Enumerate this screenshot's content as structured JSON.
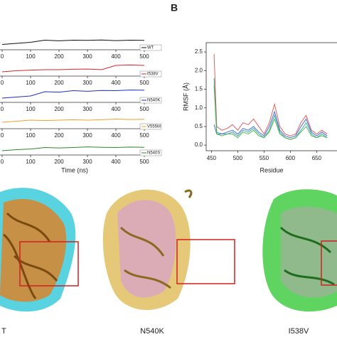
{
  "panel_label": "B",
  "chart_data": [
    {
      "type": "strips",
      "x_label": "Time (ns)",
      "x": [
        0,
        50,
        100,
        150,
        200,
        250,
        300,
        350,
        400,
        450,
        500
      ],
      "xlim": [
        0,
        510
      ],
      "xticks": [
        0,
        100,
        200,
        300,
        400,
        500
      ],
      "ylim": [
        0,
        1
      ],
      "series": [
        {
          "name": "WT",
          "color": "#111111",
          "values": [
            0.25,
            0.3,
            0.35,
            0.45,
            0.42,
            0.45,
            0.44,
            0.46,
            0.43,
            0.45,
            0.44
          ]
        },
        {
          "name": "I538V",
          "color": "#d62728",
          "values": [
            0.2,
            0.25,
            0.28,
            0.3,
            0.3,
            0.32,
            0.33,
            0.3,
            0.5,
            0.52,
            0.5
          ]
        },
        {
          "name": "N540K",
          "color": "#1f2fbf",
          "values": [
            0.2,
            0.25,
            0.3,
            0.5,
            0.48,
            0.55,
            0.52,
            0.56,
            0.55,
            0.58,
            0.57
          ]
        },
        {
          "name": "V555M",
          "color": "#f0a030",
          "values": [
            0.3,
            0.35,
            0.4,
            0.38,
            0.4,
            0.42,
            0.4,
            0.42,
            0.45,
            0.43,
            0.44
          ]
        },
        {
          "name": "N540S",
          "color": "#2a8a2a",
          "values": [
            0.2,
            0.25,
            0.28,
            0.35,
            0.33,
            0.35,
            0.38,
            0.36,
            0.35,
            0.37,
            0.36
          ]
        }
      ]
    },
    {
      "type": "line",
      "x_label": "Residue",
      "y_label": "RMSF (Å)",
      "x": [
        455,
        460,
        470,
        480,
        490,
        500,
        510,
        520,
        530,
        540,
        550,
        560,
        570,
        580,
        590,
        600,
        610,
        620,
        630,
        640,
        650,
        660,
        670
      ],
      "xlim": [
        440,
        690
      ],
      "xticks": [
        450,
        500,
        550,
        600,
        650
      ],
      "ylim": [
        -0.15,
        2.75
      ],
      "yticks": [
        {
          "value": 0,
          "label": "0.0"
        },
        {
          "value": 0.5,
          "label": "0.5"
        },
        {
          "value": 1,
          "label": "1.0"
        },
        {
          "value": 1.5,
          "label": "1.5"
        },
        {
          "value": 2,
          "label": "2.0"
        },
        {
          "value": 2.5,
          "label": "2.5"
        }
      ],
      "series": [
        {
          "color": "#e05050",
          "values": [
            2.45,
            0.5,
            0.4,
            0.45,
            0.55,
            0.4,
            0.6,
            0.55,
            0.7,
            0.5,
            0.3,
            0.6,
            1.1,
            0.5,
            0.3,
            0.25,
            0.3,
            0.6,
            0.8,
            0.4,
            0.3,
            0.4,
            0.3
          ]
        },
        {
          "color": "#30a0a0",
          "values": [
            1.8,
            0.35,
            0.3,
            0.3,
            0.35,
            0.25,
            0.4,
            0.35,
            0.45,
            0.3,
            0.2,
            0.4,
            0.8,
            0.35,
            0.2,
            0.15,
            0.2,
            0.4,
            0.6,
            0.3,
            0.2,
            0.3,
            0.2
          ]
        },
        {
          "color": "#3060d0",
          "values": [
            0.55,
            0.3,
            0.3,
            0.35,
            0.4,
            0.3,
            0.45,
            0.4,
            0.5,
            0.35,
            0.25,
            0.5,
            0.9,
            0.4,
            0.25,
            0.2,
            0.25,
            0.5,
            0.7,
            0.35,
            0.25,
            0.35,
            0.25
          ]
        },
        {
          "color": "#40b040",
          "values": [
            1.6,
            0.3,
            0.25,
            0.3,
            0.3,
            0.2,
            0.35,
            0.3,
            0.4,
            0.25,
            0.2,
            0.35,
            0.7,
            0.3,
            0.2,
            0.15,
            0.2,
            0.35,
            0.5,
            0.25,
            0.2,
            0.25,
            0.2
          ]
        }
      ]
    }
  ],
  "structures": {
    "labels": [
      "T",
      "N540K",
      "I538V"
    ]
  }
}
